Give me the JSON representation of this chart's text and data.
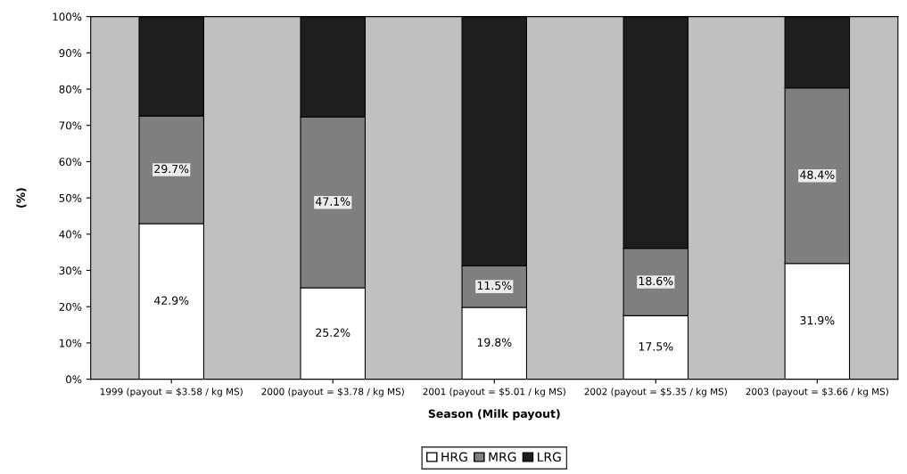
{
  "chart_data": {
    "type": "bar",
    "stacked": true,
    "xlabel": "Season (Milk payout)",
    "ylabel": "(%)",
    "categories": [
      "1999 (payout = $3.58 / kg MS)",
      "2000 (payout = $3.78 / kg MS)",
      "2001 (payout = $5.01 / kg MS)",
      "2002 (payout = $5.35 / kg MS)",
      "2003 (payout = $3.66 / kg MS)"
    ],
    "series": [
      {
        "name": "HRG",
        "color": "#ffffff",
        "values": [
          42.9,
          25.2,
          19.8,
          17.5,
          31.9
        ],
        "value_labels": [
          "42.9%",
          "25.2%",
          "19.8%",
          "17.5%",
          "31.9%"
        ]
      },
      {
        "name": "MRG",
        "color": "#7f7f7f",
        "values": [
          29.7,
          47.1,
          11.5,
          18.6,
          48.4
        ],
        "value_labels": [
          "29.7%",
          "47.1%",
          "11.5%",
          "18.6%",
          "48.4%"
        ]
      },
      {
        "name": "LRG",
        "color": "#1e1e1e",
        "values": [
          27.4,
          27.7,
          68.7,
          63.9,
          19.7
        ]
      }
    ],
    "ylim": [
      0,
      100
    ],
    "yticks": [
      {
        "value": 0,
        "label": "0%"
      },
      {
        "value": 10,
        "label": "10%"
      },
      {
        "value": 20,
        "label": "20%"
      },
      {
        "value": 30,
        "label": "30%"
      },
      {
        "value": 40,
        "label": "40%"
      },
      {
        "value": 50,
        "label": "50%"
      },
      {
        "value": 60,
        "label": "60%"
      },
      {
        "value": 70,
        "label": "70%"
      },
      {
        "value": 80,
        "label": "80%"
      },
      {
        "value": 90,
        "label": "90%"
      },
      {
        "value": 100,
        "label": "100%"
      }
    ],
    "grid": false,
    "legend": "bottom"
  }
}
